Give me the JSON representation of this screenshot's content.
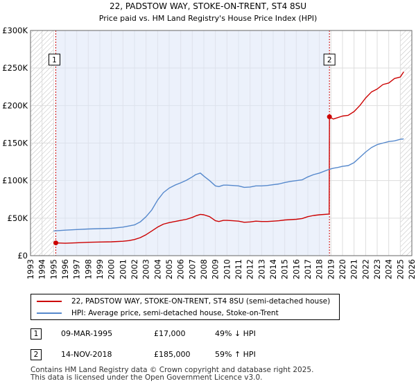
{
  "chart_data": {
    "type": "line",
    "title": "22, PADSTOW WAY, STOKE-ON-TRENT, ST4 8SU",
    "subtitle": "Price paid vs. HM Land Registry's House Price Index (HPI)",
    "xlim": [
      1993,
      2026
    ],
    "ylim": [
      0,
      300000
    ],
    "x_ticks": [
      1993,
      1994,
      1995,
      1996,
      1997,
      1998,
      1999,
      2000,
      2001,
      2002,
      2003,
      2004,
      2005,
      2006,
      2007,
      2008,
      2009,
      2010,
      2011,
      2012,
      2013,
      2014,
      2015,
      2016,
      2017,
      2018,
      2019,
      2020,
      2021,
      2022,
      2023,
      2024,
      2025,
      2026
    ],
    "y_ticks": [
      0,
      50000,
      100000,
      150000,
      200000,
      250000,
      300000
    ],
    "y_tick_labels": [
      "£0",
      "£50K",
      "£100K",
      "£150K",
      "£200K",
      "£250K",
      "£300K"
    ],
    "series": [
      {
        "name": "22, PADSTOW WAY, STOKE-ON-TRENT, ST4 8SU (semi-detached house)",
        "color": "#cc0000",
        "x": [
          1995.19,
          1996,
          1997,
          1998,
          1999,
          2000,
          2001,
          2001.5,
          2002,
          2002.5,
          2003,
          2003.5,
          2004,
          2004.5,
          2005,
          2005.5,
          2006,
          2006.5,
          2007,
          2007.3,
          2007.7,
          2008,
          2008.5,
          2009,
          2009.3,
          2009.7,
          2010,
          2010.5,
          2011,
          2011.5,
          2012,
          2012.5,
          2013,
          2013.5,
          2014,
          2014.5,
          2015,
          2015.5,
          2016,
          2016.5,
          2017,
          2017.5,
          2018,
          2018.85,
          2018.87,
          2019.2,
          2019.6,
          2020,
          2020.5,
          2021,
          2021.5,
          2022,
          2022.5,
          2023,
          2023.5,
          2024,
          2024.5,
          2025,
          2025.3
        ],
        "y": [
          17000,
          16500,
          17200,
          17800,
          18200,
          18500,
          19200,
          20000,
          21500,
          24000,
          28000,
          33000,
          38000,
          42000,
          44000,
          45500,
          47000,
          48500,
          51000,
          53000,
          55000,
          54500,
          52000,
          46500,
          45500,
          47000,
          47000,
          46500,
          46000,
          44500,
          45000,
          46000,
          45500,
          45500,
          46000,
          46500,
          47500,
          48000,
          48500,
          49500,
          52000,
          53500,
          54500,
          55500,
          185000,
          182000,
          184000,
          186000,
          187000,
          192000,
          200000,
          210000,
          218000,
          222000,
          228000,
          230000,
          236000,
          238000,
          245000
        ]
      },
      {
        "name": "HPI: Average price, semi-detached house, Stoke-on-Trent",
        "color": "#5588cc",
        "x": [
          1995,
          1996,
          1997,
          1998,
          1999,
          2000,
          2001,
          2001.5,
          2002,
          2002.5,
          2003,
          2003.5,
          2004,
          2004.5,
          2005,
          2005.5,
          2006,
          2006.5,
          2007,
          2007.3,
          2007.7,
          2008,
          2008.5,
          2009,
          2009.3,
          2009.7,
          2010,
          2010.5,
          2011,
          2011.5,
          2012,
          2012.5,
          2013,
          2013.5,
          2014,
          2014.5,
          2015,
          2015.5,
          2016,
          2016.5,
          2017,
          2017.5,
          2018,
          2018.85,
          2019.2,
          2019.6,
          2020,
          2020.5,
          2021,
          2021.5,
          2022,
          2022.5,
          2023,
          2023.5,
          2024,
          2024.5,
          2025,
          2025.3
        ],
        "y": [
          33000,
          34000,
          34800,
          35500,
          36000,
          36500,
          38000,
          39500,
          41000,
          45000,
          52000,
          61000,
          74000,
          84000,
          90000,
          94000,
          97000,
          100500,
          105000,
          108000,
          110000,
          106000,
          100000,
          93000,
          92000,
          94000,
          94000,
          93500,
          93000,
          91000,
          91500,
          93000,
          93000,
          93500,
          94500,
          95500,
          97500,
          99000,
          100000,
          101000,
          105000,
          108000,
          110000,
          115000,
          116500,
          117500,
          119000,
          120000,
          124000,
          131000,
          138000,
          144000,
          148000,
          150000,
          152000,
          153000,
          155000,
          155500
        ]
      }
    ],
    "annotations": [
      {
        "label": "1",
        "x": 1995.19,
        "y": 17000
      },
      {
        "label": "2",
        "x": 2018.87,
        "y": 185000
      }
    ],
    "shaded_ranges": [
      [
        1995.19,
        2018.87
      ]
    ],
    "hatched_ranges": [
      [
        1993,
        1995.0
      ],
      [
        2025.0,
        2026
      ]
    ]
  },
  "legend": {
    "items": [
      {
        "label": "22, PADSTOW WAY, STOKE-ON-TRENT, ST4 8SU (semi-detached house)",
        "color": "#cc0000"
      },
      {
        "label": "HPI: Average price, semi-detached house, Stoke-on-Trent",
        "color": "#5588cc"
      }
    ]
  },
  "sales": [
    {
      "num": "1",
      "date": "09-MAR-1995",
      "price": "£17,000",
      "hpi": "49% ↓ HPI"
    },
    {
      "num": "2",
      "date": "14-NOV-2018",
      "price": "£185,000",
      "hpi": "59% ↑ HPI"
    }
  ],
  "footer": {
    "line1": "Contains HM Land Registry data © Crown copyright and database right 2025.",
    "line2": "This data is licensed under the Open Government Licence v3.0."
  }
}
